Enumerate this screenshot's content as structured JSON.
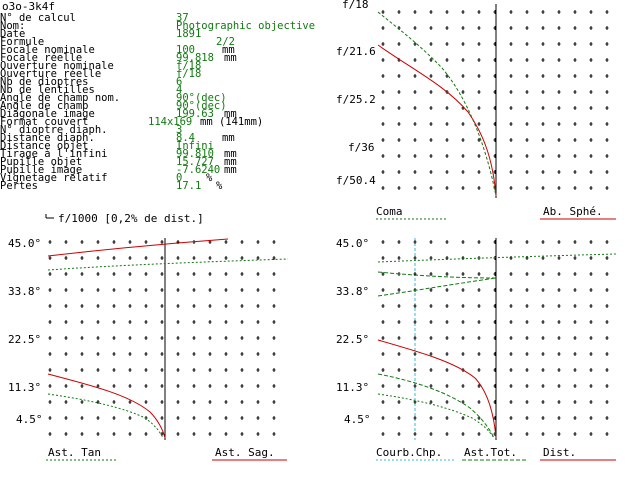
{
  "title": "o3o-3k4f",
  "params": [
    {
      "label": "N° de calcul",
      "value": "37",
      "unit": ""
    },
    {
      "label": "Nom:",
      "value": "Photographic objective",
      "unit": ""
    },
    {
      "label": "Date",
      "value": "1891",
      "unit": ""
    },
    {
      "label": "Formule",
      "value": "2/2",
      "unit": ""
    },
    {
      "label": "Focale nominale",
      "value": "100",
      "unit": "mm"
    },
    {
      "label": "Focale réelle",
      "value": "99.818",
      "unit": "mm"
    },
    {
      "label": "Ouverture nominale",
      "value": "f/18",
      "unit": ""
    },
    {
      "label": "Ouverture réelle",
      "value": "f/18",
      "unit": ""
    },
    {
      "label": "Nb de dioptres",
      "value": "6",
      "unit": ""
    },
    {
      "label": "Nb de lentilles",
      "value": "4",
      "unit": ""
    },
    {
      "label": "Angle de champ nom.",
      "value": "90°(dec)",
      "unit": ""
    },
    {
      "label": "Angle de champ",
      "value": "90°(dec)",
      "unit": ""
    },
    {
      "label": "Diagonale image",
      "value": "199.63",
      "unit": "mm"
    },
    {
      "label": "Format couvert",
      "value": "114x169",
      "unit": "mm (141mm)"
    },
    {
      "label": "N° dioptre diaph.",
      "value": "3",
      "unit": ""
    },
    {
      "label": "Distance diaph.",
      "value": "8.4",
      "unit": "mm"
    },
    {
      "label": "Distance objet",
      "value": "Infini",
      "unit": ""
    },
    {
      "label": "Tirage à l'infini",
      "value": "99.810",
      "unit": "mm"
    },
    {
      "label": "Pupille objet",
      "value": "15.727",
      "unit": "mm"
    },
    {
      "label": "Pupille image",
      "value": "-7.6240",
      "unit": "mm"
    },
    {
      "label": "Vignetage relatif",
      "value": "0",
      "unit": "%"
    },
    {
      "label": "Pertes",
      "value": "17.1",
      "unit": "%"
    }
  ],
  "charts": {
    "spherical": {
      "ylabels": [
        "f/18",
        "f/21.6",
        "f/25.2",
        "f/36",
        "f/50.4"
      ],
      "legend_left": "Coma",
      "legend_right": "Ab. Sphé."
    },
    "astig": {
      "header": "f/1000 [0,2% de dist.]",
      "ylabels": [
        "45.0°",
        "33.8°",
        "22.5°",
        "11.3°",
        "4.5°"
      ],
      "legend_left": "Ast. Tan",
      "legend_right": "Ast. Sag."
    },
    "field": {
      "ylabels": [
        "45.0°",
        "33.8°",
        "22.5°",
        "11.3°",
        "4.5°"
      ],
      "legend_1": "Courb.Chp.",
      "legend_2": "Ast.Tot.",
      "legend_3": "Dist."
    }
  },
  "colors": {
    "value": "#117a11",
    "red": "#cc0000",
    "green": "#117a11",
    "cyan": "#33bbdd"
  }
}
